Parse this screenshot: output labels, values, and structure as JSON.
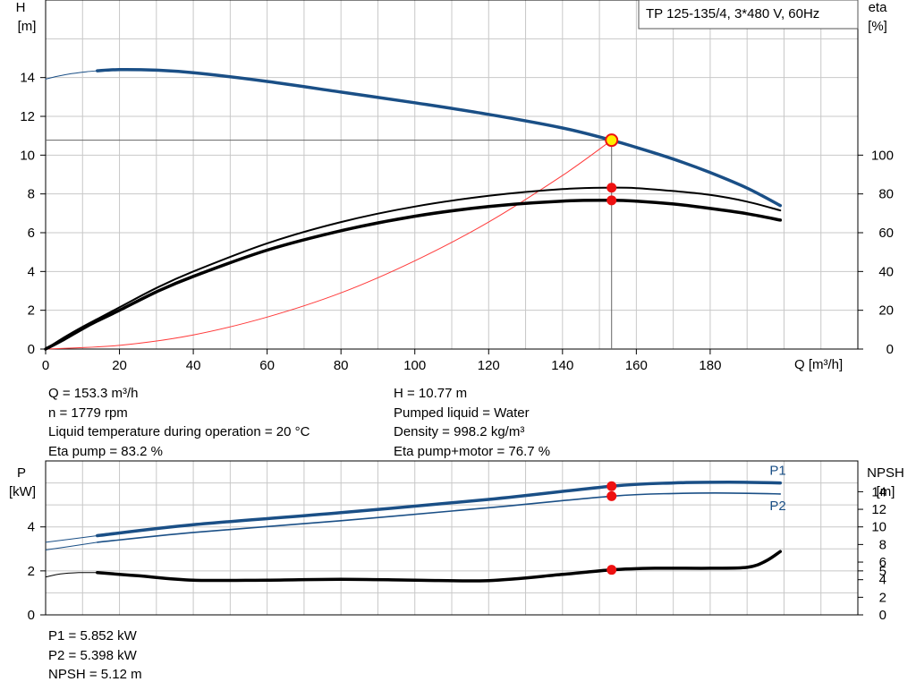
{
  "chart_data": [
    {
      "type": "line",
      "title": "TP 125-135/4, 3*480 V, 60Hz",
      "xlabel": "Q [m³/h]",
      "ylabel_left": [
        "H",
        "[m]"
      ],
      "ylabel_right": [
        "eta",
        "[%]"
      ],
      "xlim": [
        0,
        220
      ],
      "ylim_left": [
        0,
        18
      ],
      "ylim_right": [
        0,
        180
      ],
      "x_ticks": [
        "0",
        "20",
        "40",
        "60",
        "80",
        "100",
        "120",
        "140",
        "160",
        "180"
      ],
      "y_ticks_left": [
        "0",
        "2",
        "4",
        "6",
        "8",
        "10",
        "12",
        "14"
      ],
      "y_ticks_right": [
        "0",
        "20",
        "40",
        "60",
        "80",
        "100"
      ],
      "grid": true,
      "series": [
        {
          "key": "h_low",
          "axis": "left",
          "x": [
            0,
            3,
            7,
            11,
            14
          ],
          "y": [
            13.92,
            14.06,
            14.2,
            14.3,
            14.35
          ]
        },
        {
          "key": "h",
          "axis": "left",
          "x": [
            14,
            20,
            30,
            40,
            60,
            80,
            100,
            120,
            140,
            153.3,
            160,
            170,
            180,
            190,
            199
          ],
          "y": [
            14.35,
            14.41,
            14.38,
            14.25,
            13.8,
            13.25,
            12.7,
            12.1,
            11.4,
            10.77,
            10.4,
            9.8,
            9.1,
            8.3,
            7.4
          ]
        },
        {
          "key": "eta_pump",
          "axis": "right",
          "x": [
            0,
            5,
            10,
            14,
            20,
            30,
            40,
            60,
            80,
            100,
            120,
            140,
            153.3,
            160,
            170,
            180,
            190,
            199
          ],
          "y": [
            0,
            6,
            11.5,
            15.5,
            21.5,
            31.5,
            40,
            54.5,
            65.5,
            73.5,
            79,
            82.5,
            83.2,
            83,
            81.5,
            79.5,
            76,
            71.5
          ]
        },
        {
          "key": "eta_total",
          "axis": "right",
          "x": [
            0,
            5,
            10,
            14,
            20,
            30,
            40,
            60,
            80,
            100,
            120,
            140,
            153.3,
            160,
            170,
            180,
            190,
            199
          ],
          "y": [
            0,
            5,
            10.5,
            14.5,
            20,
            29.5,
            37.5,
            51,
            61,
            68.5,
            73.5,
            76.3,
            76.7,
            76.3,
            74.8,
            72.5,
            69.8,
            66.5
          ]
        },
        {
          "key": "system",
          "axis": "left",
          "x": [
            0,
            20,
            40,
            60,
            80,
            100,
            120,
            140,
            153.3
          ],
          "y": [
            0,
            0.19,
            0.73,
            1.65,
            2.9,
            4.55,
            6.55,
            8.95,
            10.77
          ]
        }
      ],
      "operating_point": {
        "x": 153.3,
        "h": 10.77,
        "eta_pump": 83.2,
        "eta_total": 76.7
      }
    },
    {
      "type": "line",
      "ylabel_left": [
        "P",
        "[kW]"
      ],
      "ylabel_right": [
        "NPSH",
        "[m]"
      ],
      "xlim": [
        0,
        220
      ],
      "ylim_left": [
        0,
        7
      ],
      "ylim_right": [
        0,
        17.5
      ],
      "y_ticks_left": [
        "0",
        "2",
        "4"
      ],
      "y_ticks_right": [
        "0",
        "2",
        "4",
        "5",
        "6",
        "8",
        "10",
        "12",
        "14"
      ],
      "npsh_tick_values": [
        0,
        2,
        4,
        5,
        6,
        8,
        10,
        12,
        14
      ],
      "grid": true,
      "series": [
        {
          "key": "p1",
          "name": "P1",
          "axis": "left",
          "x": [
            0,
            14,
            40,
            80,
            120,
            153.3,
            170,
            185,
            199
          ],
          "y": [
            3.3,
            3.6,
            4.1,
            4.65,
            5.25,
            5.852,
            6.0,
            6.03,
            6.0
          ]
        },
        {
          "key": "p2",
          "name": "P2",
          "axis": "left",
          "x": [
            0,
            14,
            40,
            80,
            120,
            153.3,
            170,
            185,
            199
          ],
          "y": [
            2.95,
            3.3,
            3.75,
            4.28,
            4.87,
            5.398,
            5.52,
            5.54,
            5.5
          ]
        },
        {
          "key": "npsh_low",
          "axis": "right",
          "x": [
            0,
            4,
            9,
            14
          ],
          "y": [
            4.3,
            4.65,
            4.8,
            4.8
          ]
        },
        {
          "key": "npsh",
          "axis": "right",
          "x": [
            14,
            25,
            40,
            60,
            80,
            100,
            120,
            140,
            153.3,
            165,
            180,
            190,
            195,
            199
          ],
          "y": [
            4.8,
            4.45,
            3.95,
            3.95,
            4.05,
            3.95,
            3.9,
            4.6,
            5.12,
            5.3,
            5.3,
            5.4,
            6.1,
            7.2
          ]
        }
      ],
      "operating_point": {
        "x": 153.3,
        "p1": 5.852,
        "p2": 5.398,
        "npsh": 5.12
      }
    }
  ],
  "info_top_left": [
    "Q = 153.3 m³/h",
    "n = 1779 rpm",
    "Liquid temperature during operation = 20 °C",
    "Eta pump = 83.2 %"
  ],
  "info_top_right": [
    "H = 10.77 m",
    "Pumped liquid = Water",
    "Density = 998.2 kg/m³",
    "Eta pump+motor = 76.7 %"
  ],
  "info_bottom": [
    "P1 = 5.852 kW",
    "P2 = 5.398 kW",
    "NPSH = 5.12 m"
  ],
  "colors": {
    "head": "#1a4f86",
    "efficiency": "#000000",
    "system_curve": "#ff3a3a",
    "marker": "#ee1111",
    "operating_point_fill": "#ffee00",
    "grid": "#c8c8c8",
    "power": "#1a4f86",
    "npsh": "#000000"
  }
}
